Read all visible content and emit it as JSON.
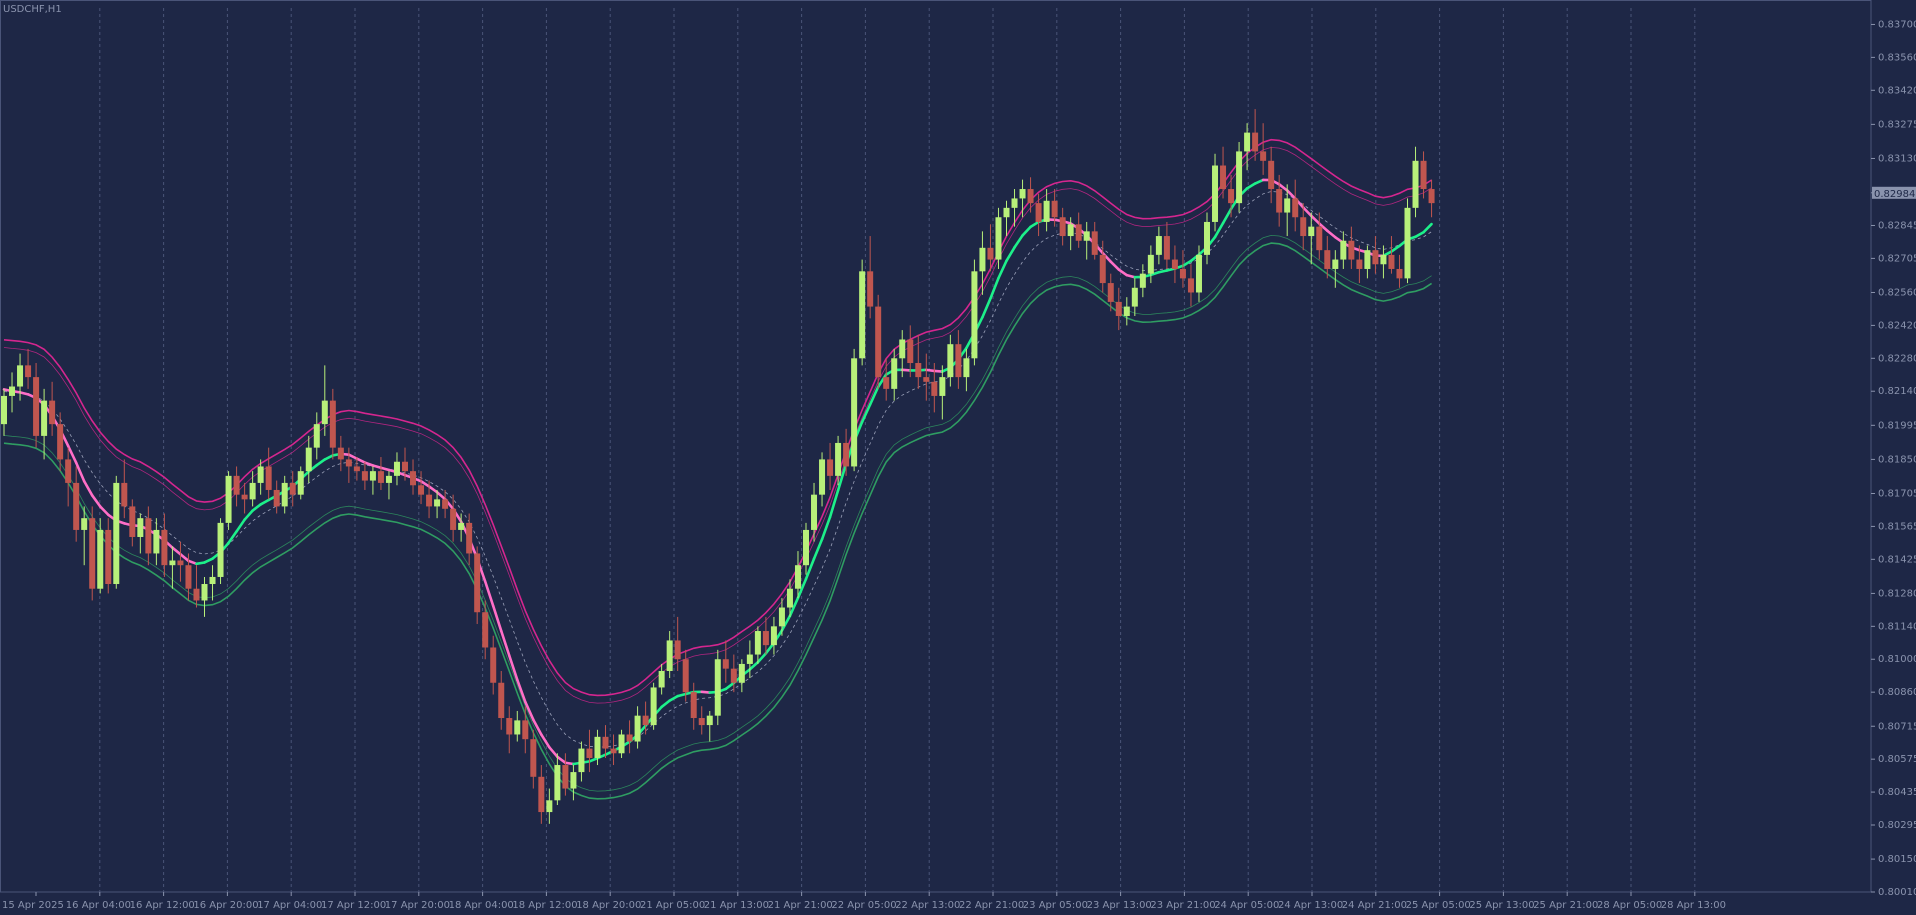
{
  "window": {
    "symbol_label": "USDCHF,H1"
  },
  "colors": {
    "background": "#1e2746",
    "grid": "#4a5478",
    "axis_text": "#8a93ad",
    "bull": "#b8f07a",
    "bear": "#c0564f",
    "upper_band": "#d5268f",
    "lower_band": "#2f9d62",
    "middle": "#9aa0b8",
    "trend_up": "#1df08a",
    "trend_down": "#ff6ec7"
  },
  "chart_data": {
    "type": "candlestick",
    "title": "USDCHF,H1",
    "ylim": [
      0.8001,
      0.8377
    ],
    "y_ticks": [
      "0.83700",
      "0.83560",
      "0.83420",
      "0.83275",
      "0.83130",
      "0.82984",
      "0.82845",
      "0.82705",
      "0.82560",
      "0.82420",
      "0.82280",
      "0.82140",
      "0.81995",
      "0.81850",
      "0.81705",
      "0.81565",
      "0.81425",
      "0.81280",
      "0.81140",
      "0.81000",
      "0.80860",
      "0.80715",
      "0.80575",
      "0.80435",
      "0.80295",
      "0.80150",
      "0.80010"
    ],
    "x_ticks": [
      "15 Apr 2025",
      "16 Apr 04:00",
      "16 Apr 12:00",
      "16 Apr 20:00",
      "17 Apr 04:00",
      "17 Apr 12:00",
      "17 Apr 20:00",
      "18 Apr 04:00",
      "18 Apr 12:00",
      "18 Apr 20:00",
      "21 Apr 05:00",
      "21 Apr 13:00",
      "21 Apr 21:00",
      "22 Apr 05:00",
      "22 Apr 13:00",
      "22 Apr 21:00",
      "23 Apr 05:00",
      "23 Apr 13:00",
      "23 Apr 21:00",
      "24 Apr 05:00",
      "24 Apr 13:00",
      "24 Apr 21:00",
      "25 Apr 05:00",
      "25 Apr 13:00",
      "25 Apr 21:00",
      "28 Apr 05:00",
      "28 Apr 13:00"
    ],
    "x_tick_count_hours": 8,
    "current_price": "0.82984",
    "candles": [
      [
        0.82,
        0.8215,
        0.8195,
        0.8212
      ],
      [
        0.8212,
        0.8222,
        0.8205,
        0.8216
      ],
      [
        0.8216,
        0.823,
        0.821,
        0.8225
      ],
      [
        0.8225,
        0.8232,
        0.8215,
        0.822
      ],
      [
        0.822,
        0.8226,
        0.819,
        0.8195
      ],
      [
        0.8195,
        0.8215,
        0.8185,
        0.821
      ],
      [
        0.821,
        0.8218,
        0.8195,
        0.82
      ],
      [
        0.82,
        0.8205,
        0.818,
        0.8185
      ],
      [
        0.8185,
        0.819,
        0.8165,
        0.8175
      ],
      [
        0.8175,
        0.8182,
        0.815,
        0.8155
      ],
      [
        0.8155,
        0.8165,
        0.814,
        0.816
      ],
      [
        0.816,
        0.8165,
        0.8125,
        0.813
      ],
      [
        0.813,
        0.816,
        0.8128,
        0.8155
      ],
      [
        0.8155,
        0.816,
        0.8128,
        0.8132
      ],
      [
        0.8132,
        0.8178,
        0.813,
        0.8175
      ],
      [
        0.8175,
        0.8185,
        0.816,
        0.8165
      ],
      [
        0.8165,
        0.8168,
        0.8148,
        0.8152
      ],
      [
        0.8152,
        0.8162,
        0.8145,
        0.816
      ],
      [
        0.816,
        0.8165,
        0.814,
        0.8145
      ],
      [
        0.8145,
        0.816,
        0.814,
        0.8155
      ],
      [
        0.8155,
        0.8162,
        0.8135,
        0.814
      ],
      [
        0.814,
        0.8148,
        0.813,
        0.8142
      ],
      [
        0.8142,
        0.815,
        0.8133,
        0.814
      ],
      [
        0.814,
        0.8145,
        0.8125,
        0.813
      ],
      [
        0.813,
        0.814,
        0.8122,
        0.8125
      ],
      [
        0.8125,
        0.8135,
        0.8118,
        0.8132
      ],
      [
        0.8132,
        0.814,
        0.8125,
        0.8135
      ],
      [
        0.8135,
        0.816,
        0.8132,
        0.8158
      ],
      [
        0.8158,
        0.818,
        0.8155,
        0.8178
      ],
      [
        0.8178,
        0.8182,
        0.8165,
        0.817
      ],
      [
        0.817,
        0.8175,
        0.8162,
        0.8168
      ],
      [
        0.8168,
        0.818,
        0.8165,
        0.8175
      ],
      [
        0.8175,
        0.8185,
        0.817,
        0.8182
      ],
      [
        0.8182,
        0.819,
        0.8168,
        0.8172
      ],
      [
        0.8172,
        0.8176,
        0.8162,
        0.8165
      ],
      [
        0.8165,
        0.8178,
        0.8162,
        0.8175
      ],
      [
        0.8175,
        0.818,
        0.8165,
        0.817
      ],
      [
        0.817,
        0.8182,
        0.8168,
        0.818
      ],
      [
        0.818,
        0.8195,
        0.8175,
        0.819
      ],
      [
        0.819,
        0.8205,
        0.8185,
        0.82
      ],
      [
        0.82,
        0.8225,
        0.8195,
        0.821
      ],
      [
        0.821,
        0.8215,
        0.8185,
        0.819
      ],
      [
        0.819,
        0.8195,
        0.818,
        0.8185
      ],
      [
        0.8185,
        0.819,
        0.8175,
        0.8182
      ],
      [
        0.8182,
        0.8186,
        0.8176,
        0.818
      ],
      [
        0.818,
        0.8184,
        0.8172,
        0.8176
      ],
      [
        0.8176,
        0.8182,
        0.817,
        0.818
      ],
      [
        0.818,
        0.8186,
        0.8172,
        0.8175
      ],
      [
        0.8175,
        0.818,
        0.8168,
        0.8178
      ],
      [
        0.8178,
        0.8188,
        0.8174,
        0.8184
      ],
      [
        0.8184,
        0.819,
        0.8176,
        0.818
      ],
      [
        0.818,
        0.8185,
        0.817,
        0.8174
      ],
      [
        0.8174,
        0.818,
        0.8166,
        0.817
      ],
      [
        0.817,
        0.8176,
        0.816,
        0.8165
      ],
      [
        0.8165,
        0.8172,
        0.816,
        0.8168
      ],
      [
        0.8168,
        0.8172,
        0.816,
        0.8164
      ],
      [
        0.8164,
        0.817,
        0.815,
        0.8155
      ],
      [
        0.8155,
        0.8162,
        0.815,
        0.8158
      ],
      [
        0.8158,
        0.8162,
        0.814,
        0.8145
      ],
      [
        0.8145,
        0.8148,
        0.8115,
        0.812
      ],
      [
        0.812,
        0.8125,
        0.81,
        0.8105
      ],
      [
        0.8105,
        0.811,
        0.8085,
        0.809
      ],
      [
        0.809,
        0.8095,
        0.807,
        0.8075
      ],
      [
        0.8075,
        0.808,
        0.806,
        0.8068
      ],
      [
        0.8068,
        0.8078,
        0.8065,
        0.8074
      ],
      [
        0.8074,
        0.808,
        0.806,
        0.8066
      ],
      [
        0.8066,
        0.807,
        0.8045,
        0.805
      ],
      [
        0.805,
        0.8055,
        0.803,
        0.8035
      ],
      [
        0.8035,
        0.8045,
        0.803,
        0.804
      ],
      [
        0.804,
        0.806,
        0.8038,
        0.8055
      ],
      [
        0.8055,
        0.806,
        0.8042,
        0.8045
      ],
      [
        0.8045,
        0.8055,
        0.804,
        0.8052
      ],
      [
        0.8052,
        0.8065,
        0.8048,
        0.8062
      ],
      [
        0.8062,
        0.807,
        0.8052,
        0.8058
      ],
      [
        0.8058,
        0.807,
        0.8055,
        0.8067
      ],
      [
        0.8067,
        0.8072,
        0.8058,
        0.8062
      ],
      [
        0.8062,
        0.8068,
        0.8055,
        0.806
      ],
      [
        0.806,
        0.807,
        0.8058,
        0.8068
      ],
      [
        0.8068,
        0.8074,
        0.806,
        0.8065
      ],
      [
        0.8065,
        0.808,
        0.8062,
        0.8076
      ],
      [
        0.8076,
        0.8082,
        0.8068,
        0.8072
      ],
      [
        0.8072,
        0.809,
        0.807,
        0.8088
      ],
      [
        0.8088,
        0.8098,
        0.8085,
        0.8095
      ],
      [
        0.8095,
        0.8112,
        0.8092,
        0.8108
      ],
      [
        0.8108,
        0.8118,
        0.8095,
        0.81
      ],
      [
        0.81,
        0.8104,
        0.8082,
        0.8086
      ],
      [
        0.8086,
        0.809,
        0.807,
        0.8075
      ],
      [
        0.8075,
        0.808,
        0.8068,
        0.8072
      ],
      [
        0.8072,
        0.8078,
        0.8065,
        0.8076
      ],
      [
        0.8076,
        0.8104,
        0.8072,
        0.81
      ],
      [
        0.81,
        0.8108,
        0.809,
        0.8096
      ],
      [
        0.8096,
        0.8102,
        0.8086,
        0.809
      ],
      [
        0.809,
        0.81,
        0.8086,
        0.8098
      ],
      [
        0.8098,
        0.8108,
        0.8092,
        0.8102
      ],
      [
        0.8102,
        0.8114,
        0.8098,
        0.8112
      ],
      [
        0.8112,
        0.8118,
        0.8102,
        0.8106
      ],
      [
        0.8106,
        0.8118,
        0.8102,
        0.8114
      ],
      [
        0.8114,
        0.8126,
        0.811,
        0.8122
      ],
      [
        0.8122,
        0.8134,
        0.8118,
        0.813
      ],
      [
        0.813,
        0.8146,
        0.8126,
        0.814
      ],
      [
        0.814,
        0.8158,
        0.8136,
        0.8155
      ],
      [
        0.8155,
        0.8175,
        0.815,
        0.817
      ],
      [
        0.817,
        0.8188,
        0.8165,
        0.8185
      ],
      [
        0.8185,
        0.8192,
        0.8172,
        0.8178
      ],
      [
        0.8178,
        0.8195,
        0.8174,
        0.8192
      ],
      [
        0.8192,
        0.8198,
        0.8178,
        0.8182
      ],
      [
        0.8182,
        0.8232,
        0.818,
        0.8228
      ],
      [
        0.8228,
        0.827,
        0.8225,
        0.8265
      ],
      [
        0.8265,
        0.828,
        0.8245,
        0.825
      ],
      [
        0.825,
        0.8255,
        0.8215,
        0.822
      ],
      [
        0.822,
        0.8228,
        0.821,
        0.8215
      ],
      [
        0.8215,
        0.8232,
        0.821,
        0.8228
      ],
      [
        0.8228,
        0.824,
        0.822,
        0.8236
      ],
      [
        0.8236,
        0.8242,
        0.822,
        0.8226
      ],
      [
        0.8226,
        0.8238,
        0.8215,
        0.822
      ],
      [
        0.822,
        0.823,
        0.821,
        0.8218
      ],
      [
        0.8218,
        0.8226,
        0.8205,
        0.8212
      ],
      [
        0.8212,
        0.8225,
        0.8202,
        0.822
      ],
      [
        0.822,
        0.8238,
        0.8216,
        0.8234
      ],
      [
        0.8234,
        0.824,
        0.8215,
        0.822
      ],
      [
        0.822,
        0.8232,
        0.8214,
        0.8228
      ],
      [
        0.8228,
        0.827,
        0.8225,
        0.8265
      ],
      [
        0.8265,
        0.8282,
        0.8255,
        0.8275
      ],
      [
        0.8275,
        0.8285,
        0.8265,
        0.827
      ],
      [
        0.827,
        0.8292,
        0.8266,
        0.8288
      ],
      [
        0.8288,
        0.8295,
        0.828,
        0.8292
      ],
      [
        0.8292,
        0.83,
        0.8284,
        0.8296
      ],
      [
        0.8296,
        0.8304,
        0.8288,
        0.83
      ],
      [
        0.83,
        0.8305,
        0.829,
        0.8294
      ],
      [
        0.8294,
        0.8298,
        0.828,
        0.8286
      ],
      [
        0.8286,
        0.83,
        0.8282,
        0.8295
      ],
      [
        0.8295,
        0.83,
        0.8284,
        0.8288
      ],
      [
        0.8288,
        0.8292,
        0.8276,
        0.828
      ],
      [
        0.828,
        0.8288,
        0.8274,
        0.8285
      ],
      [
        0.8285,
        0.829,
        0.8275,
        0.8278
      ],
      [
        0.8278,
        0.8286,
        0.827,
        0.8282
      ],
      [
        0.8282,
        0.8286,
        0.827,
        0.8272
      ],
      [
        0.8272,
        0.8278,
        0.8256,
        0.826
      ],
      [
        0.826,
        0.8264,
        0.8248,
        0.8252
      ],
      [
        0.8252,
        0.8258,
        0.824,
        0.8246
      ],
      [
        0.8246,
        0.8254,
        0.8242,
        0.825
      ],
      [
        0.825,
        0.8262,
        0.8246,
        0.8258
      ],
      [
        0.8258,
        0.8268,
        0.8254,
        0.8264
      ],
      [
        0.8264,
        0.8276,
        0.826,
        0.8272
      ],
      [
        0.8272,
        0.8284,
        0.8268,
        0.828
      ],
      [
        0.828,
        0.8286,
        0.8266,
        0.827
      ],
      [
        0.827,
        0.8276,
        0.826,
        0.8266
      ],
      [
        0.8266,
        0.8274,
        0.8258,
        0.8262
      ],
      [
        0.8262,
        0.8268,
        0.825,
        0.8256
      ],
      [
        0.8256,
        0.8276,
        0.8252,
        0.8272
      ],
      [
        0.8272,
        0.829,
        0.8268,
        0.8286
      ],
      [
        0.8286,
        0.8315,
        0.8282,
        0.831
      ],
      [
        0.831,
        0.8318,
        0.8296,
        0.83
      ],
      [
        0.83,
        0.8306,
        0.8288,
        0.8294
      ],
      [
        0.8294,
        0.832,
        0.829,
        0.8316
      ],
      [
        0.8316,
        0.8328,
        0.8308,
        0.8324
      ],
      [
        0.8324,
        0.8334,
        0.8312,
        0.8316
      ],
      [
        0.8316,
        0.8328,
        0.8306,
        0.8312
      ],
      [
        0.8312,
        0.8318,
        0.8294,
        0.83
      ],
      [
        0.83,
        0.8306,
        0.8284,
        0.829
      ],
      [
        0.829,
        0.8302,
        0.828,
        0.8296
      ],
      [
        0.8296,
        0.8304,
        0.8282,
        0.8288
      ],
      [
        0.8288,
        0.8294,
        0.8274,
        0.828
      ],
      [
        0.828,
        0.829,
        0.8268,
        0.8284
      ],
      [
        0.8284,
        0.829,
        0.827,
        0.8274
      ],
      [
        0.8274,
        0.828,
        0.8262,
        0.8266
      ],
      [
        0.8266,
        0.8274,
        0.8258,
        0.827
      ],
      [
        0.827,
        0.8282,
        0.8266,
        0.8278
      ],
      [
        0.8278,
        0.8284,
        0.8266,
        0.827
      ],
      [
        0.827,
        0.8276,
        0.826,
        0.8266
      ],
      [
        0.8266,
        0.8276,
        0.8262,
        0.8274
      ],
      [
        0.8274,
        0.828,
        0.8264,
        0.8268
      ],
      [
        0.8268,
        0.8276,
        0.8262,
        0.8272
      ],
      [
        0.8272,
        0.828,
        0.8264,
        0.8266
      ],
      [
        0.8266,
        0.8272,
        0.8258,
        0.8262
      ],
      [
        0.8262,
        0.8296,
        0.826,
        0.8292
      ],
      [
        0.8292,
        0.8318,
        0.8288,
        0.8312
      ],
      [
        0.8312,
        0.8316,
        0.8296,
        0.83
      ],
      [
        0.83,
        0.8304,
        0.8288,
        0.8294
      ]
    ],
    "first_candle_center_x": 4,
    "indicators": [
      "upper band",
      "middle band",
      "lower band",
      "trend line"
    ]
  }
}
